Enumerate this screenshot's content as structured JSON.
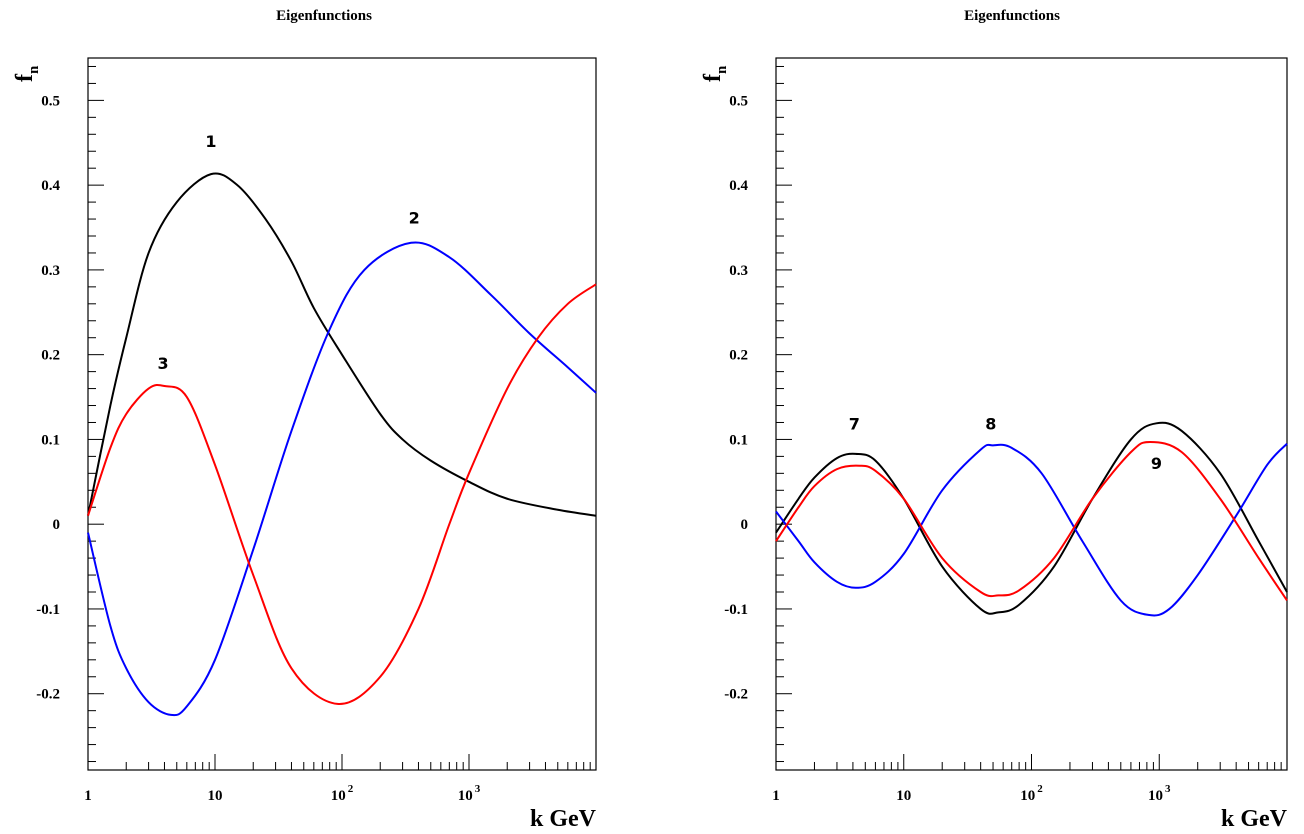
{
  "chart_data": [
    {
      "type": "line",
      "title": "Eigenfunctions",
      "xlabel": "k GeV",
      "ylabel": "f",
      "ylabel_sub": "n",
      "xscale": "log",
      "xlim": [
        1,
        10000
      ],
      "ylim": [
        -0.29,
        0.55
      ],
      "yticks": [
        -0.2,
        -0.1,
        0,
        0.1,
        0.2,
        0.3,
        0.4,
        0.5
      ],
      "ytick_labels": [
        "-0.2",
        "-0.1",
        "0",
        "0.1",
        "0.2",
        "0.3",
        "0.4",
        "0.5"
      ],
      "xticks": [
        {
          "value": 1,
          "base": "1",
          "exp": ""
        },
        {
          "value": 10,
          "base": "10",
          "exp": ""
        },
        {
          "value": 100,
          "base": "10",
          "exp": "2"
        },
        {
          "value": 1000,
          "base": "10",
          "exp": "3"
        }
      ],
      "grid": false,
      "series": [
        {
          "name": "1",
          "color": "#000000",
          "x": [
            1,
            1.5,
            2,
            3,
            5,
            9.3,
            15,
            25,
            40,
            60,
            100,
            200,
            300,
            500,
            1000,
            2000,
            5000,
            10000
          ],
          "y": [
            0.01,
            0.14,
            0.22,
            0.32,
            0.38,
            0.413,
            0.4,
            0.36,
            0.31,
            0.255,
            0.2,
            0.13,
            0.1,
            0.075,
            0.05,
            0.03,
            0.017,
            0.01
          ]
        },
        {
          "name": "2",
          "color": "#0000ff",
          "x": [
            1,
            1.5,
            2,
            3,
            4.5,
            6,
            10,
            20,
            40,
            80,
            150,
            350,
            700,
            1500,
            3000,
            6000,
            10000
          ],
          "y": [
            -0.01,
            -0.12,
            -0.17,
            -0.21,
            -0.225,
            -0.215,
            -0.16,
            -0.03,
            0.11,
            0.23,
            0.3,
            0.332,
            0.315,
            0.27,
            0.225,
            0.185,
            0.155
          ]
        },
        {
          "name": "3",
          "color": "#ff0000",
          "x": [
            1,
            1.5,
            2,
            3,
            4,
            6,
            10,
            20,
            40,
            92,
            200,
            400,
            700,
            1000,
            2000,
            3500,
            6000,
            10000
          ],
          "y": [
            0.01,
            0.09,
            0.13,
            0.16,
            0.163,
            0.15,
            0.07,
            -0.06,
            -0.17,
            -0.212,
            -0.18,
            -0.1,
            0.0,
            0.06,
            0.16,
            0.22,
            0.26,
            0.283
          ]
        }
      ],
      "labels": [
        {
          "text": "1",
          "x": 9.3,
          "y": 0.445
        },
        {
          "text": "2",
          "x": 370,
          "y": 0.355
        },
        {
          "text": "3",
          "x": 3.9,
          "y": 0.183
        }
      ]
    },
    {
      "type": "line",
      "title": "Eigenfunctions",
      "xlabel": "k GeV",
      "ylabel": "f",
      "ylabel_sub": "n",
      "xscale": "log",
      "xlim": [
        1,
        10000
      ],
      "ylim": [
        -0.29,
        0.55
      ],
      "yticks": [
        -0.2,
        -0.1,
        0,
        0.1,
        0.2,
        0.3,
        0.4,
        0.5
      ],
      "ytick_labels": [
        "-0.2",
        "-0.1",
        "0",
        "0.1",
        "0.2",
        "0.3",
        "0.4",
        "0.5"
      ],
      "xticks": [
        {
          "value": 1,
          "base": "1",
          "exp": ""
        },
        {
          "value": 10,
          "base": "10",
          "exp": ""
        },
        {
          "value": 100,
          "base": "10",
          "exp": "2"
        },
        {
          "value": 1000,
          "base": "10",
          "exp": "3"
        }
      ],
      "grid": false,
      "series": [
        {
          "name": "7",
          "color": "#000000",
          "x": [
            1,
            1.5,
            2,
            3,
            4.2,
            6,
            10,
            20,
            40,
            55,
            80,
            150,
            300,
            600,
            950,
            1500,
            3000,
            6000,
            10000
          ],
          "y": [
            -0.01,
            0.03,
            0.055,
            0.078,
            0.083,
            0.075,
            0.03,
            -0.05,
            -0.1,
            -0.104,
            -0.095,
            -0.05,
            0.03,
            0.1,
            0.119,
            0.11,
            0.06,
            -0.02,
            -0.08
          ]
        },
        {
          "name": "8",
          "color": "#0000ff",
          "x": [
            1,
            1.5,
            2,
            3,
            4.2,
            6,
            10,
            20,
            40,
            50,
            70,
            120,
            250,
            500,
            820,
            1200,
            2000,
            4000,
            7000,
            10000
          ],
          "y": [
            0.015,
            -0.02,
            -0.045,
            -0.068,
            -0.075,
            -0.068,
            -0.035,
            0.04,
            0.088,
            0.093,
            0.09,
            0.06,
            -0.02,
            -0.09,
            -0.107,
            -0.1,
            -0.06,
            0.01,
            0.07,
            0.095
          ]
        },
        {
          "name": "9",
          "color": "#ff0000",
          "x": [
            1,
            1.5,
            2,
            3,
            4.5,
            6,
            10,
            20,
            40,
            55,
            80,
            150,
            300,
            600,
            850,
            1500,
            3000,
            6000,
            10000
          ],
          "y": [
            -0.02,
            0.02,
            0.045,
            0.065,
            0.069,
            0.063,
            0.03,
            -0.04,
            -0.08,
            -0.084,
            -0.078,
            -0.04,
            0.03,
            0.085,
            0.097,
            0.085,
            0.03,
            -0.04,
            -0.09
          ]
        }
      ],
      "labels": [
        {
          "text": "7",
          "x": 4.1,
          "y": 0.112
        },
        {
          "text": "8",
          "x": 48,
          "y": 0.112
        },
        {
          "text": "9",
          "x": 950,
          "y": 0.065
        }
      ]
    }
  ]
}
